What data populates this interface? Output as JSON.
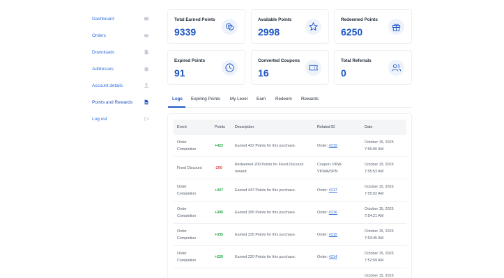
{
  "sidebar": {
    "items": [
      {
        "label": "Dashboard",
        "icon": "dashboard-icon"
      },
      {
        "label": "Orders",
        "icon": "orders-icon"
      },
      {
        "label": "Downloads",
        "icon": "download-icon"
      },
      {
        "label": "Addresses",
        "icon": "home-icon"
      },
      {
        "label": "Account details",
        "icon": "user-icon"
      },
      {
        "label": "Points and Rewards",
        "icon": "document-icon",
        "active": true
      },
      {
        "label": "Log out",
        "icon": "logout-icon"
      }
    ]
  },
  "stats": [
    {
      "title": "Total Earned Points",
      "value": "9339",
      "icon": "coins-icon"
    },
    {
      "title": "Available Points",
      "value": "2998",
      "icon": "star-icon"
    },
    {
      "title": "Redeemed Points",
      "value": "6250",
      "icon": "gift-icon"
    },
    {
      "title": "Expired Points",
      "value": "91",
      "icon": "clock-icon"
    },
    {
      "title": "Converted Coupons",
      "value": "16",
      "icon": "ticket-icon"
    },
    {
      "title": "Total Referrals",
      "value": "0",
      "icon": "users-icon"
    }
  ],
  "tabs": [
    "Logs",
    "Expiring Points",
    "My Level",
    "Earn",
    "Redeem",
    "Rewards"
  ],
  "active_tab": "Logs",
  "table": {
    "headers": [
      "Event",
      "Points",
      "Description",
      "Related ID",
      "Date"
    ],
    "rows": [
      {
        "event": [
          "Order",
          "Completion"
        ],
        "points": "+422",
        "type": "pos",
        "desc": [
          "Earned 422 Points for this purchase."
        ],
        "ref_prefix": "Order: ",
        "ref_link": "#219",
        "ref_plain": "",
        "date": [
          "October 15, 2025",
          "7:56:00 AM"
        ]
      },
      {
        "event": [
          "Fixed Discount"
        ],
        "points": "-200",
        "type": "neg",
        "desc": [
          "Redeemed 200 Points for Fixed Discount",
          "reward."
        ],
        "ref_prefix": "",
        "ref_link": "",
        "ref_plain": [
          "Coupon: PRW-",
          "VKWAZ9PN"
        ],
        "date": [
          "October 15, 2025",
          "7:55:53 AM"
        ]
      },
      {
        "event": [
          "Order",
          "Completion"
        ],
        "points": "+447",
        "type": "pos",
        "desc": [
          "Earned 447 Points for this purchase."
        ],
        "ref_prefix": "Order: ",
        "ref_link": "#217",
        "ref_plain": "",
        "date": [
          "October 15, 2025",
          "7:55:02 AM"
        ]
      },
      {
        "event": [
          "Order",
          "Completion"
        ],
        "points": "+395",
        "type": "pos",
        "desc": [
          "Earned 395 Points for this purchase."
        ],
        "ref_prefix": "Order: ",
        "ref_link": "#216",
        "ref_plain": "",
        "date": [
          "October 15, 2025",
          "7:54:21 AM"
        ]
      },
      {
        "event": [
          "Order",
          "Completion"
        ],
        "points": "+335",
        "type": "pos",
        "desc": [
          "Earned 335 Points for this purchase."
        ],
        "ref_prefix": "Order: ",
        "ref_link": "#215",
        "ref_plain": "",
        "date": [
          "October 15, 2025",
          "7:53:45 AM"
        ]
      },
      {
        "event": [
          "Order",
          "Completion"
        ],
        "points": "+220",
        "type": "pos",
        "desc": [
          "Earned 220 Points for this purchase."
        ],
        "ref_prefix": "Order: ",
        "ref_link": "#214",
        "ref_plain": "",
        "date": [
          "October 15, 2025",
          "7:52:59 AM"
        ]
      }
    ],
    "partial_row_date": "October 15, 2025"
  },
  "colors": {
    "accent": "#1e56c4",
    "link": "#2f6fdb",
    "positive": "#22a447",
    "negative": "#e5484d"
  }
}
